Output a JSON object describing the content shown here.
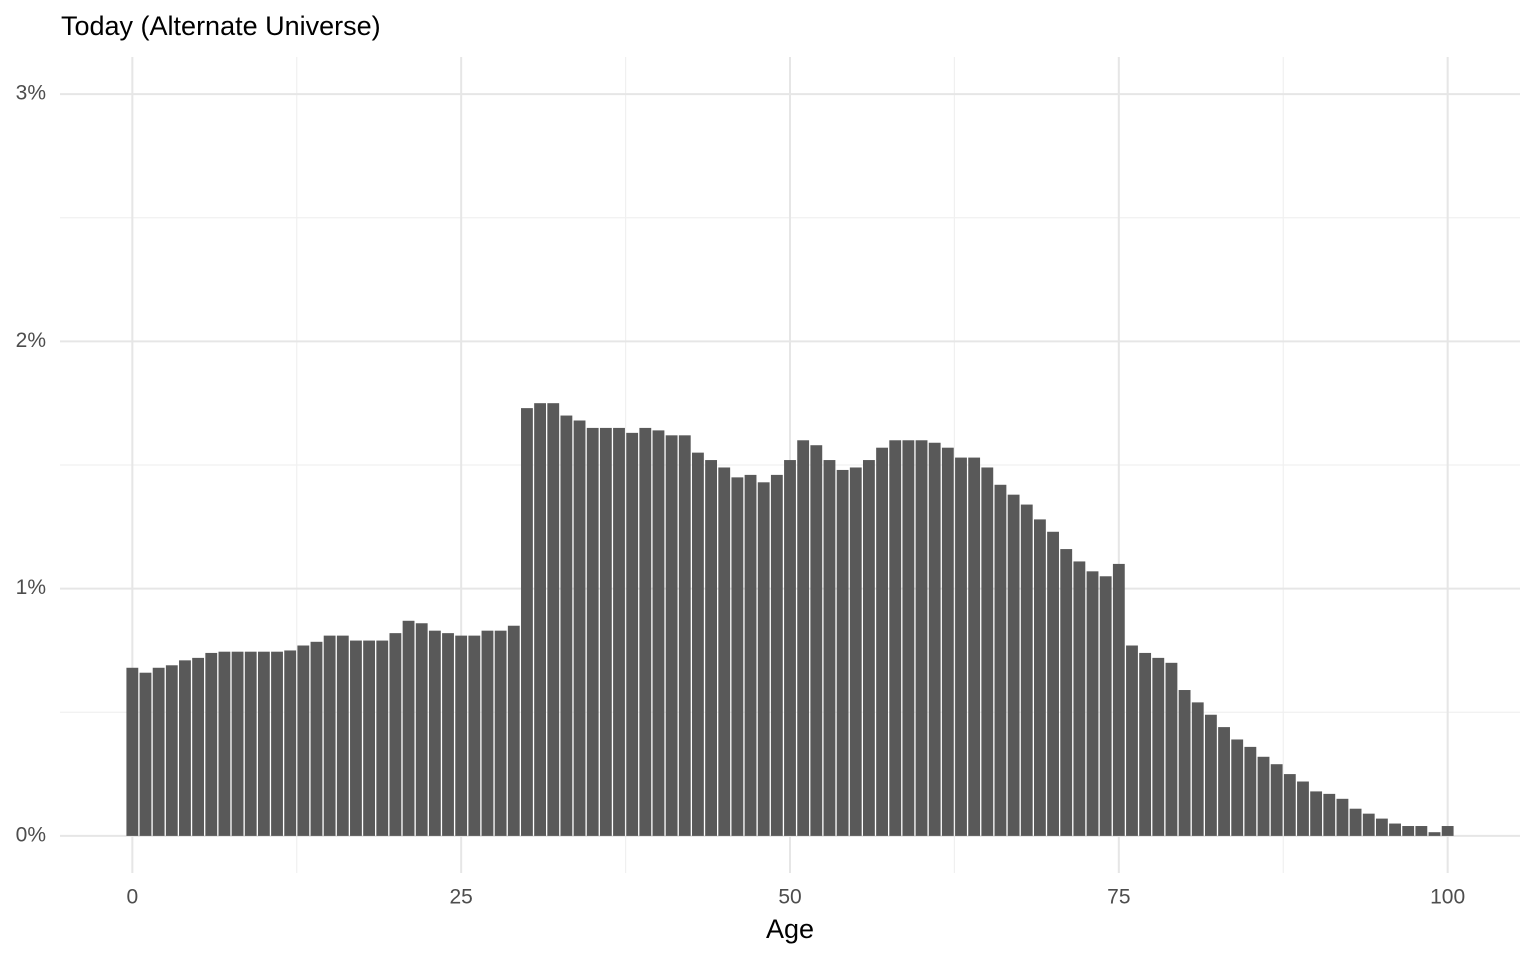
{
  "chart_data": {
    "type": "bar",
    "title": "Today (Alternate Universe)",
    "x_label": "Age",
    "color": "#595959",
    "x": [
      0,
      1,
      2,
      3,
      4,
      5,
      6,
      7,
      8,
      9,
      10,
      11,
      12,
      13,
      14,
      15,
      16,
      17,
      18,
      19,
      20,
      21,
      22,
      23,
      24,
      25,
      26,
      27,
      28,
      29,
      30,
      31,
      32,
      33,
      34,
      35,
      36,
      37,
      38,
      39,
      40,
      41,
      42,
      43,
      44,
      45,
      46,
      47,
      48,
      49,
      50,
      51,
      52,
      53,
      54,
      55,
      56,
      57,
      58,
      59,
      60,
      61,
      62,
      63,
      64,
      65,
      66,
      67,
      68,
      69,
      70,
      71,
      72,
      73,
      74,
      75,
      76,
      77,
      78,
      79,
      80,
      81,
      82,
      83,
      84,
      85,
      86,
      87,
      88,
      89,
      90,
      91,
      92,
      93,
      94,
      95,
      96,
      97,
      98,
      99,
      100
    ],
    "values": [
      0.68,
      0.66,
      0.68,
      0.69,
      0.71,
      0.72,
      0.74,
      0.745,
      0.745,
      0.745,
      0.745,
      0.745,
      0.75,
      0.77,
      0.785,
      0.81,
      0.81,
      0.79,
      0.79,
      0.79,
      0.82,
      0.87,
      0.86,
      0.83,
      0.82,
      0.81,
      0.81,
      0.83,
      0.83,
      0.85,
      1.73,
      1.75,
      1.75,
      1.7,
      1.68,
      1.65,
      1.65,
      1.65,
      1.63,
      1.65,
      1.64,
      1.62,
      1.62,
      1.55,
      1.52,
      1.49,
      1.45,
      1.46,
      1.43,
      1.46,
      1.52,
      1.6,
      1.58,
      1.52,
      1.48,
      1.49,
      1.52,
      1.57,
      1.6,
      1.6,
      1.6,
      1.59,
      1.57,
      1.53,
      1.53,
      1.49,
      1.42,
      1.38,
      1.34,
      1.28,
      1.23,
      1.16,
      1.11,
      1.07,
      1.05,
      1.1,
      0.77,
      0.74,
      0.72,
      0.7,
      0.59,
      0.54,
      0.49,
      0.44,
      0.39,
      0.36,
      0.32,
      0.29,
      0.25,
      0.22,
      0.18,
      0.17,
      0.15,
      0.11,
      0.09,
      0.07,
      0.05,
      0.04,
      0.04,
      0.015,
      0.04
    ],
    "xlim": [
      -5.5,
      105.5
    ],
    "ylim": [
      -0.15,
      3.15
    ],
    "xticks": [
      0,
      25,
      50,
      75,
      100
    ],
    "yticks": [
      {
        "value": 0,
        "label": "0%"
      },
      {
        "value": 1,
        "label": "1%"
      },
      {
        "value": 2,
        "label": "2%"
      },
      {
        "value": 3,
        "label": "3%"
      }
    ],
    "grid": true
  }
}
